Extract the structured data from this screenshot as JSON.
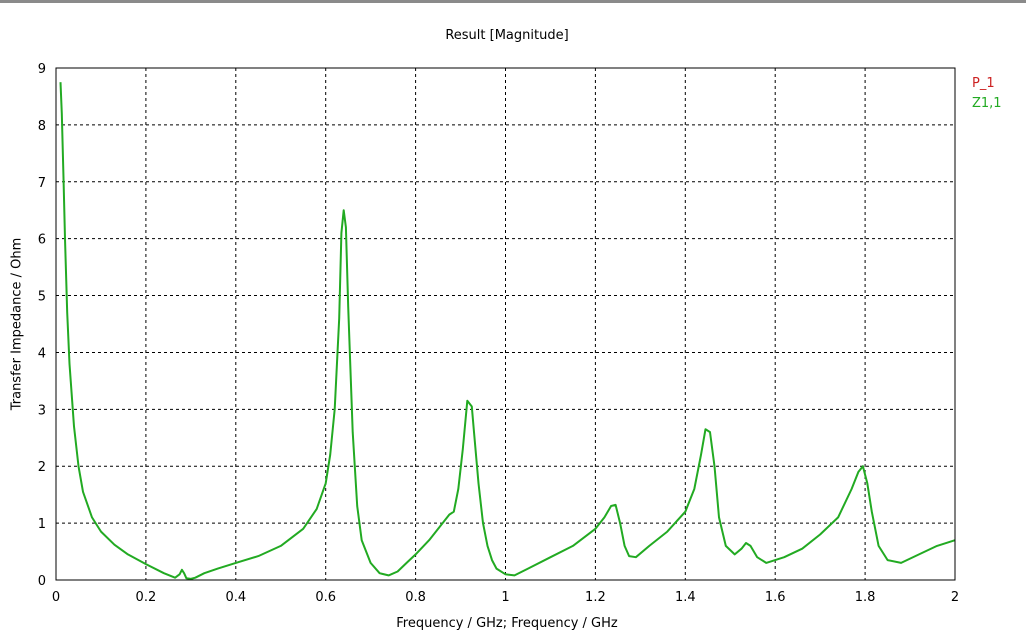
{
  "chart_data": {
    "type": "line",
    "title": "Result [Magnitude]",
    "xlabel": "Frequency / GHz; Frequency / GHz",
    "ylabel": "Transfer Impedance / Ohm",
    "xlim": [
      0,
      2
    ],
    "ylim": [
      0,
      9
    ],
    "xticks": [
      "0",
      "0.2",
      "0.4",
      "0.6",
      "0.8",
      "1",
      "1.2",
      "1.4",
      "1.6",
      "1.8",
      "2"
    ],
    "yticks": [
      "0",
      "1",
      "2",
      "3",
      "4",
      "5",
      "6",
      "7",
      "8",
      "9"
    ],
    "grid": true,
    "legend_position": "top-right",
    "legend": [
      {
        "label": "P_1",
        "color": "#cc2222"
      },
      {
        "label": "Z1,1",
        "color": "#22aa22"
      }
    ],
    "series": [
      {
        "name": "Z1,1",
        "color": "#22aa22",
        "x": [
          0.01,
          0.013,
          0.017,
          0.02,
          0.025,
          0.03,
          0.04,
          0.05,
          0.06,
          0.08,
          0.1,
          0.13,
          0.16,
          0.2,
          0.24,
          0.265,
          0.275,
          0.28,
          0.285,
          0.29,
          0.3,
          0.31,
          0.33,
          0.36,
          0.4,
          0.45,
          0.5,
          0.55,
          0.58,
          0.6,
          0.61,
          0.62,
          0.63,
          0.635,
          0.64,
          0.645,
          0.65,
          0.66,
          0.67,
          0.68,
          0.7,
          0.72,
          0.74,
          0.76,
          0.78,
          0.8,
          0.83,
          0.86,
          0.875,
          0.885,
          0.895,
          0.905,
          0.915,
          0.925,
          0.93,
          0.94,
          0.95,
          0.96,
          0.97,
          0.98,
          1.0,
          1.02,
          1.05,
          1.1,
          1.15,
          1.2,
          1.22,
          1.235,
          1.245,
          1.255,
          1.265,
          1.275,
          1.29,
          1.32,
          1.36,
          1.4,
          1.42,
          1.435,
          1.445,
          1.455,
          1.465,
          1.475,
          1.49,
          1.51,
          1.525,
          1.535,
          1.545,
          1.56,
          1.58,
          1.62,
          1.66,
          1.7,
          1.74,
          1.77,
          1.785,
          1.795,
          1.805,
          1.815,
          1.83,
          1.85,
          1.88,
          1.92,
          1.96,
          2.0
        ],
        "values": [
          8.75,
          8.2,
          7.0,
          6.0,
          4.7,
          3.8,
          2.7,
          2.0,
          1.55,
          1.1,
          0.85,
          0.62,
          0.45,
          0.28,
          0.12,
          0.04,
          0.1,
          0.18,
          0.12,
          0.03,
          0.02,
          0.04,
          0.12,
          0.2,
          0.3,
          0.42,
          0.6,
          0.9,
          1.25,
          1.7,
          2.2,
          3.0,
          4.6,
          6.1,
          6.5,
          6.2,
          4.8,
          2.6,
          1.3,
          0.7,
          0.3,
          0.12,
          0.08,
          0.15,
          0.3,
          0.45,
          0.7,
          1.0,
          1.15,
          1.2,
          1.6,
          2.3,
          3.15,
          3.05,
          2.6,
          1.7,
          1.0,
          0.6,
          0.35,
          0.2,
          0.1,
          0.08,
          0.2,
          0.4,
          0.6,
          0.9,
          1.1,
          1.3,
          1.32,
          1.0,
          0.6,
          0.42,
          0.4,
          0.6,
          0.85,
          1.2,
          1.6,
          2.2,
          2.65,
          2.6,
          2.0,
          1.1,
          0.6,
          0.45,
          0.55,
          0.65,
          0.6,
          0.4,
          0.3,
          0.4,
          0.55,
          0.8,
          1.1,
          1.6,
          1.9,
          2.0,
          1.7,
          1.2,
          0.6,
          0.35,
          0.3,
          0.45,
          0.6,
          0.7
        ]
      }
    ]
  }
}
